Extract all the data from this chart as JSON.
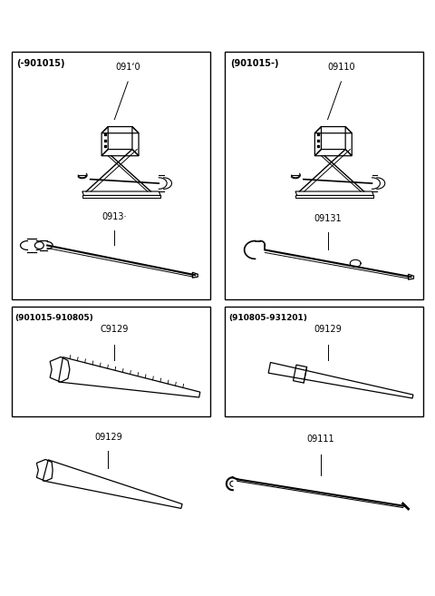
{
  "bg_color": "#ffffff",
  "box1_label": "(-901015)",
  "box2_label": "(901015-)",
  "box3_label": "(901015-910805)",
  "box4_label": "(910805-931201)",
  "part1a": "091‘0",
  "part1b": "0913·",
  "part2a": "09110",
  "part2b": "09131",
  "part3": "C9129",
  "part4": "09129",
  "standalone1": "09129",
  "standalone2": "09111"
}
